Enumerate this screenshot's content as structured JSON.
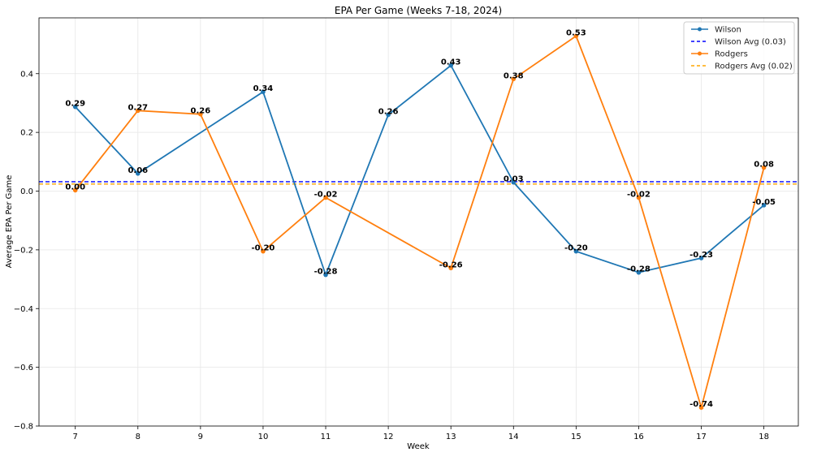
{
  "chart_data": {
    "type": "line",
    "title": "EPA Per Game (Weeks 7-18, 2024)",
    "xlabel": "Week",
    "ylabel": "Average EPA Per Game",
    "xlim": [
      6.42,
      18.55
    ],
    "ylim": [
      -0.8,
      0.59
    ],
    "xticks": [
      7,
      8,
      9,
      10,
      11,
      12,
      13,
      14,
      15,
      16,
      17,
      18
    ],
    "yticks": [
      0.4,
      0.2,
      0.0,
      -0.2,
      -0.4,
      -0.6,
      -0.8
    ],
    "ytick_labels": [
      "0.4",
      "0.2",
      "0.0",
      "−0.2",
      "−0.4",
      "−0.6",
      "−0.8"
    ],
    "grid": true,
    "legend_position": "top-right",
    "series": [
      {
        "name": "Wilson",
        "color": "#1f77b4",
        "x": [
          7,
          8,
          10,
          11,
          12,
          13,
          14,
          15,
          16,
          17,
          18
        ],
        "values": [
          0.287,
          0.06,
          0.338,
          -0.285,
          0.26,
          0.428,
          0.03,
          -0.205,
          -0.277,
          -0.228,
          -0.048
        ],
        "labels": [
          "0.29",
          "0.06",
          "0.34",
          "-0.28",
          "0.26",
          "0.43",
          "0.03",
          "-0.20",
          "-0.28",
          "-0.23",
          "-0.05"
        ]
      },
      {
        "name": "Rodgers",
        "color": "#ff7f0e",
        "x": [
          7,
          8,
          9,
          10,
          11,
          13,
          14,
          15,
          16,
          17,
          18
        ],
        "values": [
          0.003,
          0.274,
          0.262,
          -0.205,
          -0.022,
          -0.262,
          0.382,
          0.528,
          -0.022,
          -0.737,
          0.08
        ],
        "labels": [
          "0.00",
          "0.27",
          "0.26",
          "-0.20",
          "-0.02",
          "-0.26",
          "0.38",
          "0.53",
          "-0.02",
          "-0.74",
          "0.08"
        ]
      }
    ],
    "reference_lines": [
      {
        "name": "Wilson Avg (0.03)",
        "value": 0.032,
        "color": "#0000ff"
      },
      {
        "name": "Rodgers Avg (0.02)",
        "value": 0.024,
        "color": "#ffa500"
      }
    ]
  }
}
